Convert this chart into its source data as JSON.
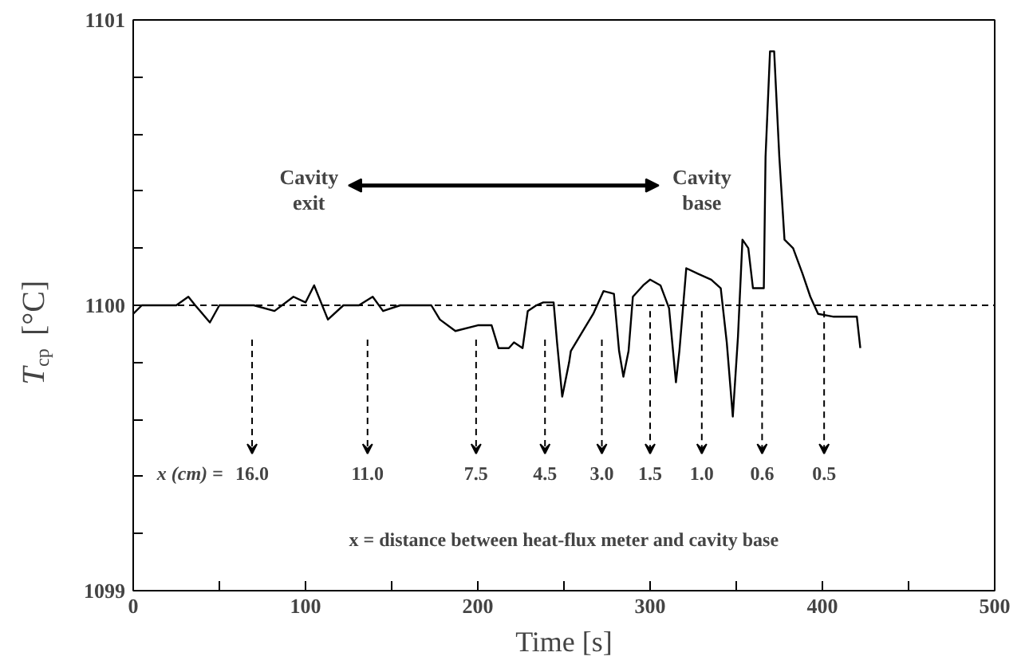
{
  "chart_data": {
    "type": "line",
    "xlabel": "Time [s]",
    "ylabel": "T$_{cp}$ [°C]",
    "xlim": [
      0,
      500
    ],
    "ylim": [
      1099,
      1101
    ],
    "xticks": [
      0,
      {
        "value": 50,
        "label": null
      },
      100,
      {
        "value": 150,
        "label": null
      },
      200,
      {
        "value": 250,
        "label": null
      },
      300,
      {
        "value": 350,
        "label": null
      },
      400,
      {
        "value": 450,
        "label": null
      },
      500
    ],
    "yticks": [
      1099,
      {
        "value": 1099.2,
        "label": null
      },
      {
        "value": 1099.4,
        "label": null
      },
      {
        "value": 1099.6,
        "label": null
      },
      {
        "value": 1099.8,
        "label": null
      },
      1100,
      {
        "value": 1100.2,
        "label": null
      },
      {
        "value": 1100.4,
        "label": null
      },
      {
        "value": 1100.6,
        "label": null
      },
      {
        "value": 1100.8,
        "label": null
      },
      1101
    ],
    "grid": false,
    "marker": "none",
    "line_style": "solid",
    "series": [
      {
        "color": "#000000",
        "x": [
          0,
          5,
          15,
          25,
          32,
          36,
          44.5,
          50,
          60,
          70,
          82,
          93,
          100,
          105,
          113,
          122,
          131,
          139,
          145,
          155,
          165,
          173,
          178,
          187,
          200,
          208,
          212,
          218,
          221,
          226,
          229,
          234,
          238,
          244,
          246,
          249,
          253,
          254,
          261,
          267,
          273,
          279,
          282,
          284.5,
          287.5,
          290,
          296,
          300,
          306,
          311,
          315,
          317,
          321,
          328,
          335.5,
          341,
          344.5,
          348,
          351,
          353.6,
          357,
          359.7,
          366,
          367,
          369.6,
          372,
          375,
          378,
          383,
          388.5,
          393,
          397.5,
          406.6,
          415,
          420,
          422
        ],
        "values": [
          1099.97,
          1100.0,
          1100.0,
          1100.0,
          1100.03,
          1100.0,
          1099.94,
          1100.0,
          1100.0,
          1100.0,
          1099.98,
          1100.03,
          1100.01,
          1100.07,
          1099.95,
          1100.0,
          1100.0,
          1100.03,
          1099.98,
          1100.0,
          1100.0,
          1100.0,
          1099.95,
          1099.91,
          1099.93,
          1099.93,
          1099.85,
          1099.85,
          1099.87,
          1099.85,
          1099.98,
          1100.0,
          1100.01,
          1100.01,
          1099.87,
          1099.68,
          1099.8,
          1099.84,
          1099.91,
          1099.97,
          1100.05,
          1100.04,
          1099.84,
          1099.75,
          1099.84,
          1100.03,
          1100.07,
          1100.09,
          1100.07,
          1099.99,
          1099.73,
          1099.84,
          1100.13,
          1100.11,
          1100.09,
          1100.06,
          1099.87,
          1099.61,
          1099.89,
          1100.23,
          1100.2,
          1100.06,
          1100.06,
          1100.52,
          1100.89,
          1100.89,
          1100.52,
          1100.23,
          1100.2,
          1100.11,
          1100.03,
          1099.97,
          1099.96,
          1099.96,
          1099.96,
          1099.85
        ]
      }
    ],
    "ref_lines": [
      {
        "axis": "y",
        "value": 1100,
        "line_style": "dashed",
        "color": "#000000"
      }
    ],
    "annotations": [
      "Cavity exit",
      "Cavity base",
      "x (cm) =",
      "16.0",
      "11.0",
      "7.5",
      "4.5",
      "3.0",
      "1.5",
      "1.0",
      "0.6",
      "0.5",
      "x = distance between heat-flux meter and cavity base"
    ]
  }
}
